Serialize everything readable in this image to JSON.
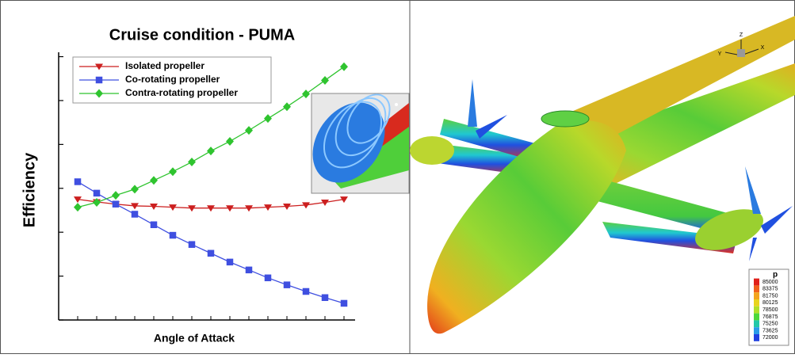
{
  "chart_data": {
    "type": "line",
    "title": "Cruise condition -  PUMA",
    "x_label": "Angle of Attack",
    "y_label": "Efficiency",
    "categories": [
      null,
      null,
      null,
      null,
      null,
      null,
      null,
      null,
      null,
      null,
      null,
      null,
      null,
      null,
      null
    ],
    "series": [
      {
        "name": "Isolated propeller",
        "color": "#cc1f1f",
        "marker": "triangle-down",
        "values": [
          2.75,
          2.69,
          2.64,
          2.6,
          2.59,
          2.57,
          2.55,
          2.55,
          2.55,
          2.55,
          2.57,
          2.59,
          2.62,
          2.68,
          2.75
        ]
      },
      {
        "name": "Co-rotating propeller",
        "color": "#3f4fe0",
        "marker": "square",
        "values": [
          3.15,
          2.89,
          2.64,
          2.41,
          2.17,
          1.93,
          1.72,
          1.52,
          1.32,
          1.14,
          0.96,
          0.8,
          0.65,
          0.51,
          0.38
        ]
      },
      {
        "name": "Contra-rotating propeller",
        "color": "#2fc42f",
        "marker": "diamond",
        "values": [
          2.57,
          2.68,
          2.84,
          2.98,
          3.18,
          3.38,
          3.6,
          3.85,
          4.07,
          4.32,
          4.59,
          4.86,
          5.15,
          5.46,
          5.77
        ]
      }
    ],
    "ylim": [
      0,
      6.1
    ],
    "yticks": [
      0,
      1,
      2,
      3,
      4,
      5,
      6
    ],
    "grid": false,
    "legend": "upper left"
  },
  "contour_panel": {
    "axes_triad": [
      "Z",
      "Y",
      "X"
    ],
    "colorbar": {
      "title": "p",
      "levels": [
        85000,
        83375,
        81750,
        80125,
        78500,
        76875,
        75250,
        73625,
        72000
      ],
      "colors": [
        "#e0201a",
        "#f0601c",
        "#f3a41e",
        "#e8d41e",
        "#b0e02a",
        "#4cd83a",
        "#22c8a8",
        "#2a9be8",
        "#2040e0"
      ]
    }
  }
}
